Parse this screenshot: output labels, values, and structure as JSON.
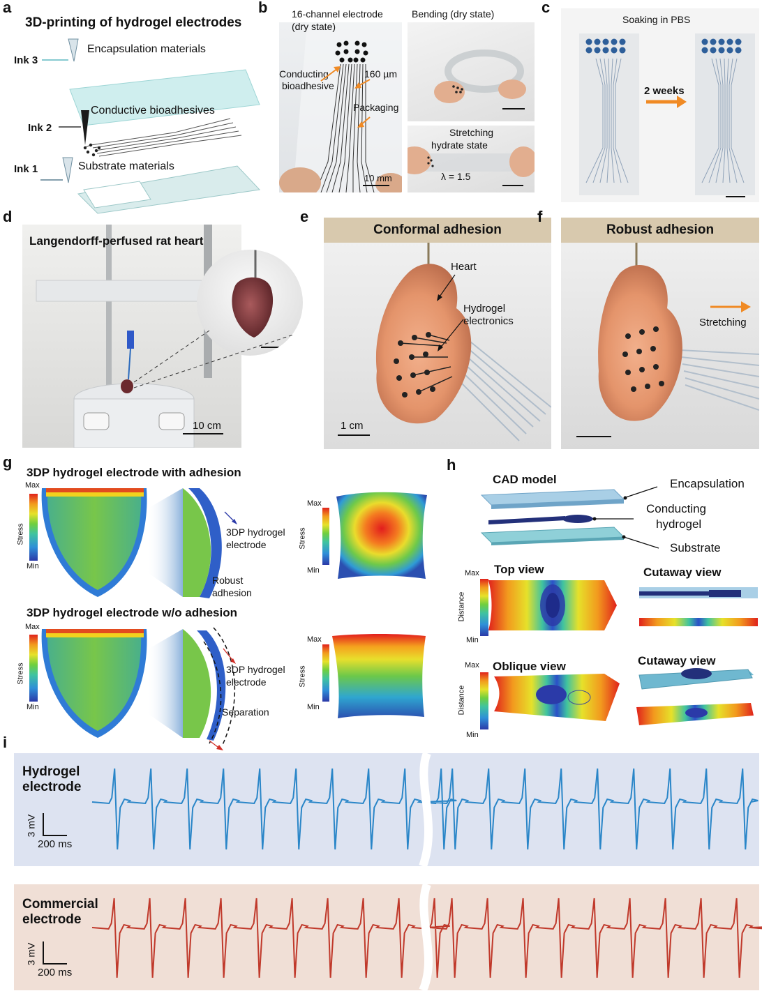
{
  "panels": {
    "a": "a",
    "b": "b",
    "c": "c",
    "d": "d",
    "e": "e",
    "f": "f",
    "g": "g",
    "h": "h",
    "i": "i"
  },
  "a": {
    "title": "3D-printing of hydrogel electrodes",
    "ink3": "Ink 3",
    "ink3_desc": "Encapsulation materials",
    "ink2": "Ink 2",
    "ink2_desc": "Conductive bioadhesives",
    "ink1": "Ink 1",
    "ink1_desc": "Substrate materials"
  },
  "b": {
    "electrode_title": "16-channel electrode",
    "electrode_state": "(dry state)",
    "label_conducting": "Conducting",
    "label_bioadhesive": "bioadhesive",
    "label_thickness": "160 µm",
    "label_packaging": "Packaging",
    "scale": "10 mm",
    "bending_title": "Bending (dry state)",
    "stretch_title": "Stretching",
    "stretch_state": "hydrate state",
    "lambda": "λ = 1.5"
  },
  "c": {
    "title": "Soaking in PBS",
    "duration": "2 weeks"
  },
  "d": {
    "title": "Langendorff-perfused rat heart",
    "scale": "10 cm"
  },
  "e": {
    "title": "Conformal adhesion",
    "heart": "Heart",
    "hydrogel": "Hydrogel",
    "electronics": "electronics",
    "scale": "1 cm"
  },
  "f": {
    "title": "Robust adhesion",
    "stretching": "Stretching"
  },
  "g": {
    "title_with": "3DP hydrogel electrode with adhesion",
    "title_without": "3DP hydrogel electrode w/o adhesion",
    "max": "Max",
    "min": "Min",
    "stress": "Stress",
    "electrode_line1": "3DP hydrogel",
    "electrode_line2": "electrode",
    "robust1": "Robust",
    "robust2": "adhesion",
    "separation": "Separation"
  },
  "h": {
    "cad": "CAD model",
    "encapsulation": "Encapsulation",
    "conducting1": "Conducting",
    "conducting2": "hydrogel",
    "substrate": "Substrate",
    "top_view": "Top view",
    "cutaway_view": "Cutaway view",
    "oblique_view": "Oblique view",
    "max": "Max",
    "min": "Min",
    "distance": "Distance"
  },
  "i": {
    "hydrogel1": "Hydrogel",
    "hydrogel2": "electrode",
    "commercial1": "Commercial",
    "commercial2": "electrode",
    "scale_v": "3 mV",
    "scale_t": "200 ms"
  },
  "colors": {
    "hydrogel_trace": "#2a86c8",
    "commercial_trace": "#c0392b",
    "hydrogel_bg": "#dde3f1",
    "commercial_bg": "#f0dfd6",
    "arrow_orange": "#f08a24",
    "banner": "#d8c9ae"
  }
}
